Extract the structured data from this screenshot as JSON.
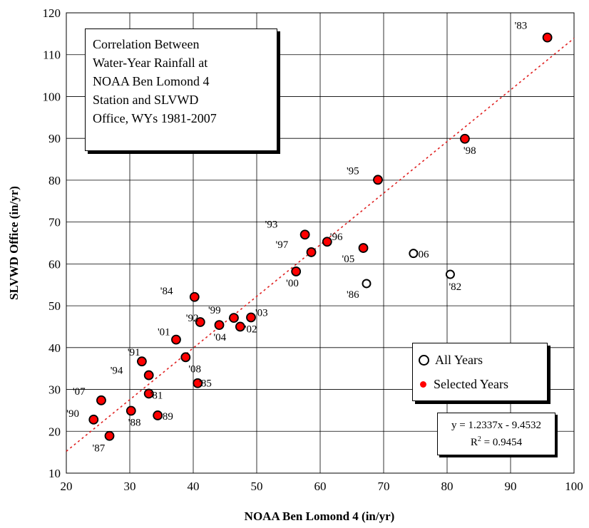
{
  "chart_data": {
    "type": "scatter",
    "title_lines": [
      "Correlation Between",
      "Water-Year Rainfall at",
      "NOAA Ben Lomond 4",
      "Station and SLVWD",
      "Office, WYs 1981-2007"
    ],
    "xlabel": "NOAA Ben Lomond 4 (in/yr)",
    "ylabel": "SLVWD Office (in/yr)",
    "xlim": [
      20,
      100
    ],
    "ylim": [
      10,
      120
    ],
    "xticks": [
      20,
      30,
      40,
      50,
      60,
      70,
      80,
      90,
      100
    ],
    "yticks": [
      10,
      20,
      30,
      40,
      50,
      60,
      70,
      80,
      90,
      100,
      110,
      120
    ],
    "grid": true,
    "legend_position": "bottom-right",
    "legend": [
      "All Years",
      "Selected Years"
    ],
    "series": [
      {
        "name": "All Years",
        "marker": "open-circle",
        "points": [
          {
            "x": 74.7,
            "y": 62.5,
            "label": "'06"
          },
          {
            "x": 80.5,
            "y": 57.5,
            "label": "'82"
          },
          {
            "x": 67.3,
            "y": 55.3,
            "label": "'86"
          }
        ]
      },
      {
        "name": "Selected Years",
        "marker": "filled-circle",
        "color": "#ff0000",
        "points": [
          {
            "x": 95.8,
            "y": 114.1,
            "label": "'83"
          },
          {
            "x": 82.8,
            "y": 89.9,
            "label": "'98"
          },
          {
            "x": 69.1,
            "y": 80.1,
            "label": "'95"
          },
          {
            "x": 57.6,
            "y": 67.0,
            "label": "'93"
          },
          {
            "x": 61.1,
            "y": 65.3,
            "label": "'96"
          },
          {
            "x": 58.6,
            "y": 62.8,
            "label": "'97"
          },
          {
            "x": 66.8,
            "y": 63.8,
            "label": "'05"
          },
          {
            "x": 56.2,
            "y": 58.2,
            "label": "'00"
          },
          {
            "x": 40.2,
            "y": 52.1,
            "label": "'84"
          },
          {
            "x": 41.1,
            "y": 46.1,
            "label": "'92"
          },
          {
            "x": 46.4,
            "y": 47.1,
            "label": "'99"
          },
          {
            "x": 49.1,
            "y": 47.2,
            "label": "'03"
          },
          {
            "x": 44.1,
            "y": 45.4,
            "label": "'04"
          },
          {
            "x": 47.4,
            "y": 45.0,
            "label": "'02"
          },
          {
            "x": 37.3,
            "y": 41.9,
            "label": "'01"
          },
          {
            "x": 38.8,
            "y": 37.7,
            "label": "'08"
          },
          {
            "x": 31.9,
            "y": 36.7,
            "label": "'91"
          },
          {
            "x": 33.0,
            "y": 33.4,
            "label": "'94"
          },
          {
            "x": 40.7,
            "y": 31.5,
            "label": "'85"
          },
          {
            "x": 33.0,
            "y": 29.0,
            "label": "'81"
          },
          {
            "x": 25.5,
            "y": 27.4,
            "label": "'07"
          },
          {
            "x": 30.2,
            "y": 24.9,
            "label": "'88"
          },
          {
            "x": 34.4,
            "y": 23.8,
            "label": "'89"
          },
          {
            "x": 24.3,
            "y": 22.8,
            "label": "'90"
          },
          {
            "x": 26.8,
            "y": 18.9,
            "label": "'87"
          }
        ]
      }
    ],
    "trendline": {
      "slope": 1.2337,
      "intercept": -9.4532,
      "color": "#e02020",
      "style": "dotted"
    },
    "equation_text": "y = 1.2337x - 9.4532",
    "r2_prefix": "R",
    "r2_sup": "2",
    "r2_value": " = 0.9454"
  }
}
